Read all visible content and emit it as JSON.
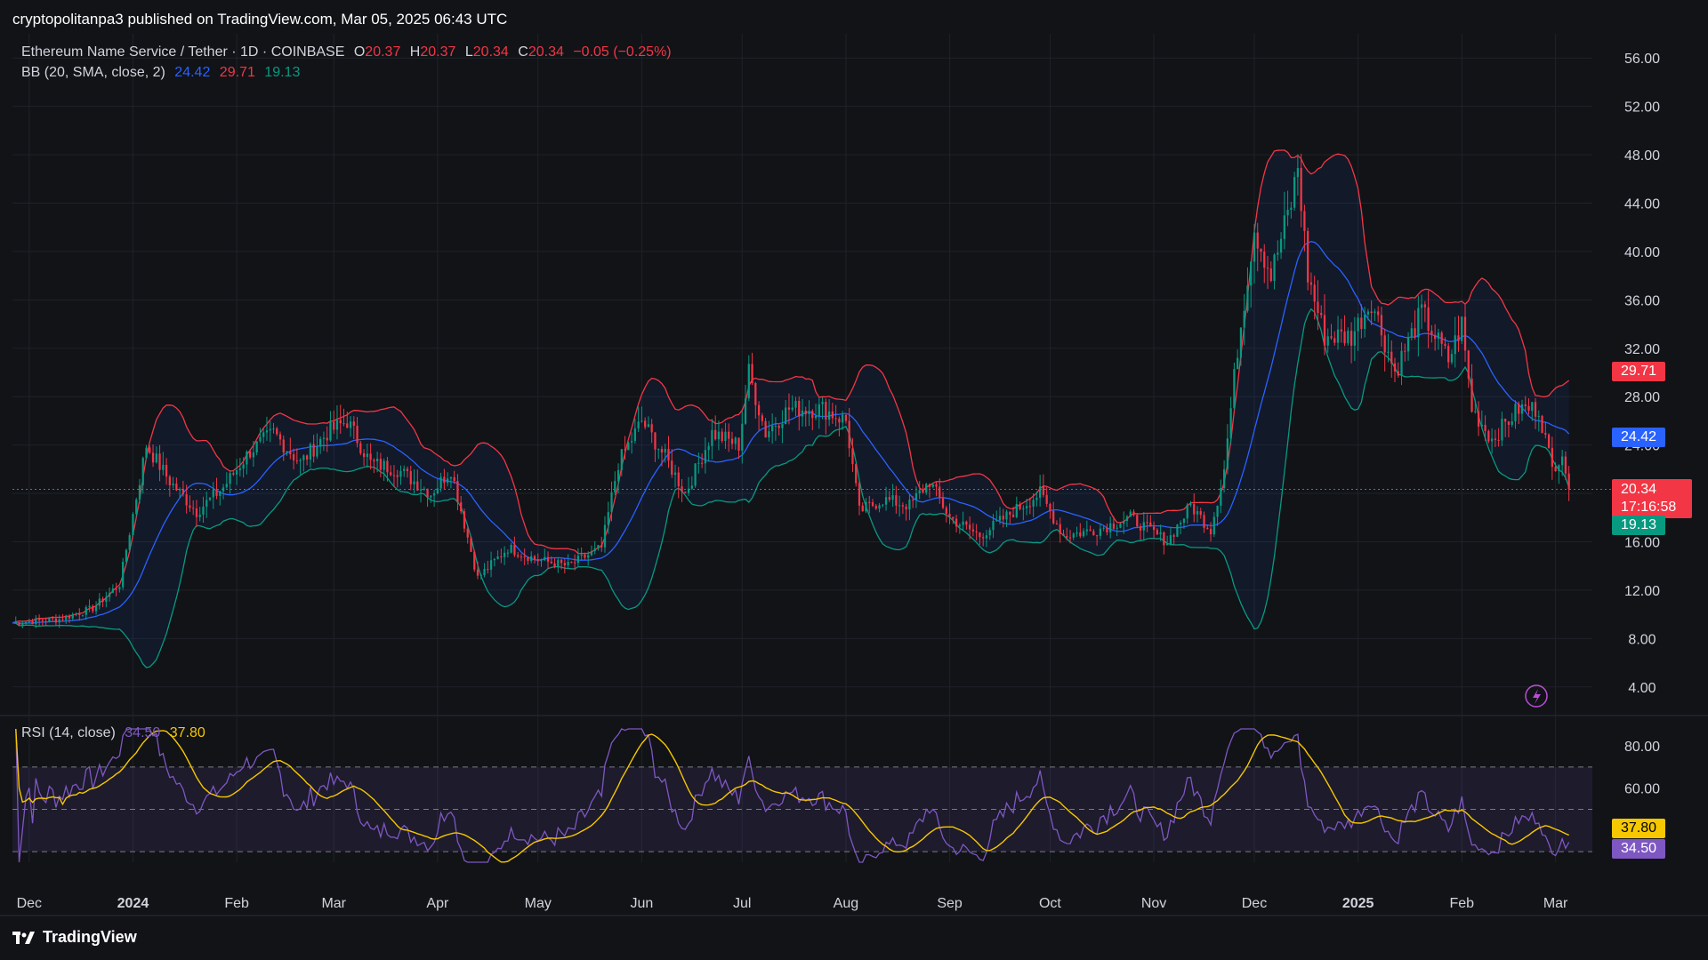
{
  "header": {
    "publisher_line": "cryptopolitanpa3 published on TradingView.com, Mar 05, 2025 06:43 UTC"
  },
  "footer": {
    "brand": "TradingView"
  },
  "legend": {
    "symbol": "Ethereum Name Service / Tether · 1D · COINBASE",
    "o_label": "O",
    "o_value": "20.37",
    "h_label": "H",
    "h_value": "20.37",
    "l_label": "L",
    "l_value": "20.34",
    "c_label": "C",
    "c_value": "20.34",
    "change": "−0.05 (−0.25%)",
    "bb_label": "BB (20, SMA, close, 2)",
    "bb_basis": "24.42",
    "bb_upper": "29.71",
    "bb_lower": "19.13",
    "rsi_label": "RSI (14, close)",
    "rsi_value": "34.50",
    "rsi_ma": "37.80"
  },
  "price_tags": {
    "upper": "29.71",
    "basis": "24.42",
    "last": "20.34",
    "countdown": "17:16:58",
    "lower": "19.13",
    "rsi_ma": "37.80",
    "rsi": "34.50"
  },
  "colors": {
    "up": "#089981",
    "down": "#f23645",
    "basis": "#2962ff",
    "upper": "#f23645",
    "lower": "#089981",
    "rsi": "#7e57c2",
    "rsi_ma": "#f7c700"
  },
  "chart_data": [
    {
      "type": "candlestick",
      "title": "Ethereum Name Service / Tether · 1D · COINBASE",
      "y_axis_ticks": [
        "56.00",
        "52.00",
        "48.00",
        "44.00",
        "40.00",
        "36.00",
        "32.00",
        "28.00",
        "24.00",
        "20.00",
        "16.00",
        "12.00",
        "8.00",
        "4.00"
      ],
      "ylim": [
        2,
        58
      ],
      "x_axis_ticks": [
        "Dec",
        "2024",
        "Feb",
        "Mar",
        "Apr",
        "May",
        "Jun",
        "Jul",
        "Aug",
        "Sep",
        "Oct",
        "Nov",
        "Dec",
        "2025",
        "Feb",
        "Mar"
      ],
      "x_range": [
        "2023-11-26",
        "2025-03-12"
      ],
      "close_anchors": [
        [
          "2023-11-26",
          9.3
        ],
        [
          "2023-12-10",
          9.6
        ],
        [
          "2023-12-20",
          10.5
        ],
        [
          "2023-12-28",
          12.5
        ],
        [
          "2024-01-05",
          24.0
        ],
        [
          "2024-01-12",
          21.0
        ],
        [
          "2024-01-20",
          18.5
        ],
        [
          "2024-01-28",
          20.5
        ],
        [
          "2024-02-05",
          23.5
        ],
        [
          "2024-02-12",
          25.0
        ],
        [
          "2024-02-20",
          22.5
        ],
        [
          "2024-02-28",
          25.0
        ],
        [
          "2024-03-05",
          26.0
        ],
        [
          "2024-03-12",
          22.5
        ],
        [
          "2024-03-20",
          22.0
        ],
        [
          "2024-03-30",
          20.0
        ],
        [
          "2024-04-05",
          22.0
        ],
        [
          "2024-04-13",
          13.0
        ],
        [
          "2024-04-22",
          15.5
        ],
        [
          "2024-05-01",
          14.5
        ],
        [
          "2024-05-10",
          14.0
        ],
        [
          "2024-05-20",
          15.5
        ],
        [
          "2024-05-25",
          22.5
        ],
        [
          "2024-06-01",
          26.0
        ],
        [
          "2024-06-08",
          23.0
        ],
        [
          "2024-06-14",
          20.0
        ],
        [
          "2024-06-22",
          25.0
        ],
        [
          "2024-06-30",
          24.0
        ],
        [
          "2024-07-03",
          30.0
        ],
        [
          "2024-07-08",
          25.0
        ],
        [
          "2024-07-15",
          27.0
        ],
        [
          "2024-07-25",
          27.0
        ],
        [
          "2024-08-01",
          26.0
        ],
        [
          "2024-08-05",
          18.5
        ],
        [
          "2024-08-12",
          19.5
        ],
        [
          "2024-08-20",
          19.0
        ],
        [
          "2024-08-26",
          21.0
        ],
        [
          "2024-09-01",
          18.0
        ],
        [
          "2024-09-10",
          16.5
        ],
        [
          "2024-09-20",
          18.5
        ],
        [
          "2024-09-28",
          20.0
        ],
        [
          "2024-10-05",
          16.5
        ],
        [
          "2024-10-15",
          17.0
        ],
        [
          "2024-10-25",
          18.0
        ],
        [
          "2024-11-05",
          16.0
        ],
        [
          "2024-11-12",
          19.0
        ],
        [
          "2024-11-18",
          17.0
        ],
        [
          "2024-11-22",
          22.0
        ],
        [
          "2024-11-26",
          32.0
        ],
        [
          "2024-12-01",
          42.0
        ],
        [
          "2024-12-06",
          38.0
        ],
        [
          "2024-12-12",
          44.0
        ],
        [
          "2024-12-14",
          47.0
        ],
        [
          "2024-12-17",
          38.0
        ],
        [
          "2024-12-22",
          33.0
        ],
        [
          "2024-12-30",
          33.0
        ],
        [
          "2025-01-05",
          36.0
        ],
        [
          "2025-01-12",
          30.0
        ],
        [
          "2025-01-20",
          35.0
        ],
        [
          "2025-01-28",
          31.0
        ],
        [
          "2025-02-01",
          34.0
        ],
        [
          "2025-02-04",
          27.0
        ],
        [
          "2025-02-10",
          24.5
        ],
        [
          "2025-02-18",
          27.0
        ],
        [
          "2025-02-24",
          27.0
        ],
        [
          "2025-02-28",
          22.0
        ],
        [
          "2025-03-03",
          23.5
        ],
        [
          "2025-03-05",
          20.34
        ]
      ],
      "bollinger": {
        "basis": "24.42",
        "upper": "29.71",
        "lower": "19.13"
      },
      "last_price": 20.34
    },
    {
      "type": "line",
      "title": "RSI (14, close)",
      "y_axis_ticks": [
        "80.00",
        "60.00"
      ],
      "ylim": [
        25,
        88
      ],
      "bands": [
        30,
        50,
        70
      ],
      "series": [
        {
          "name": "RSI",
          "last": 34.5
        },
        {
          "name": "RSI MA",
          "last": 37.8
        }
      ]
    }
  ]
}
